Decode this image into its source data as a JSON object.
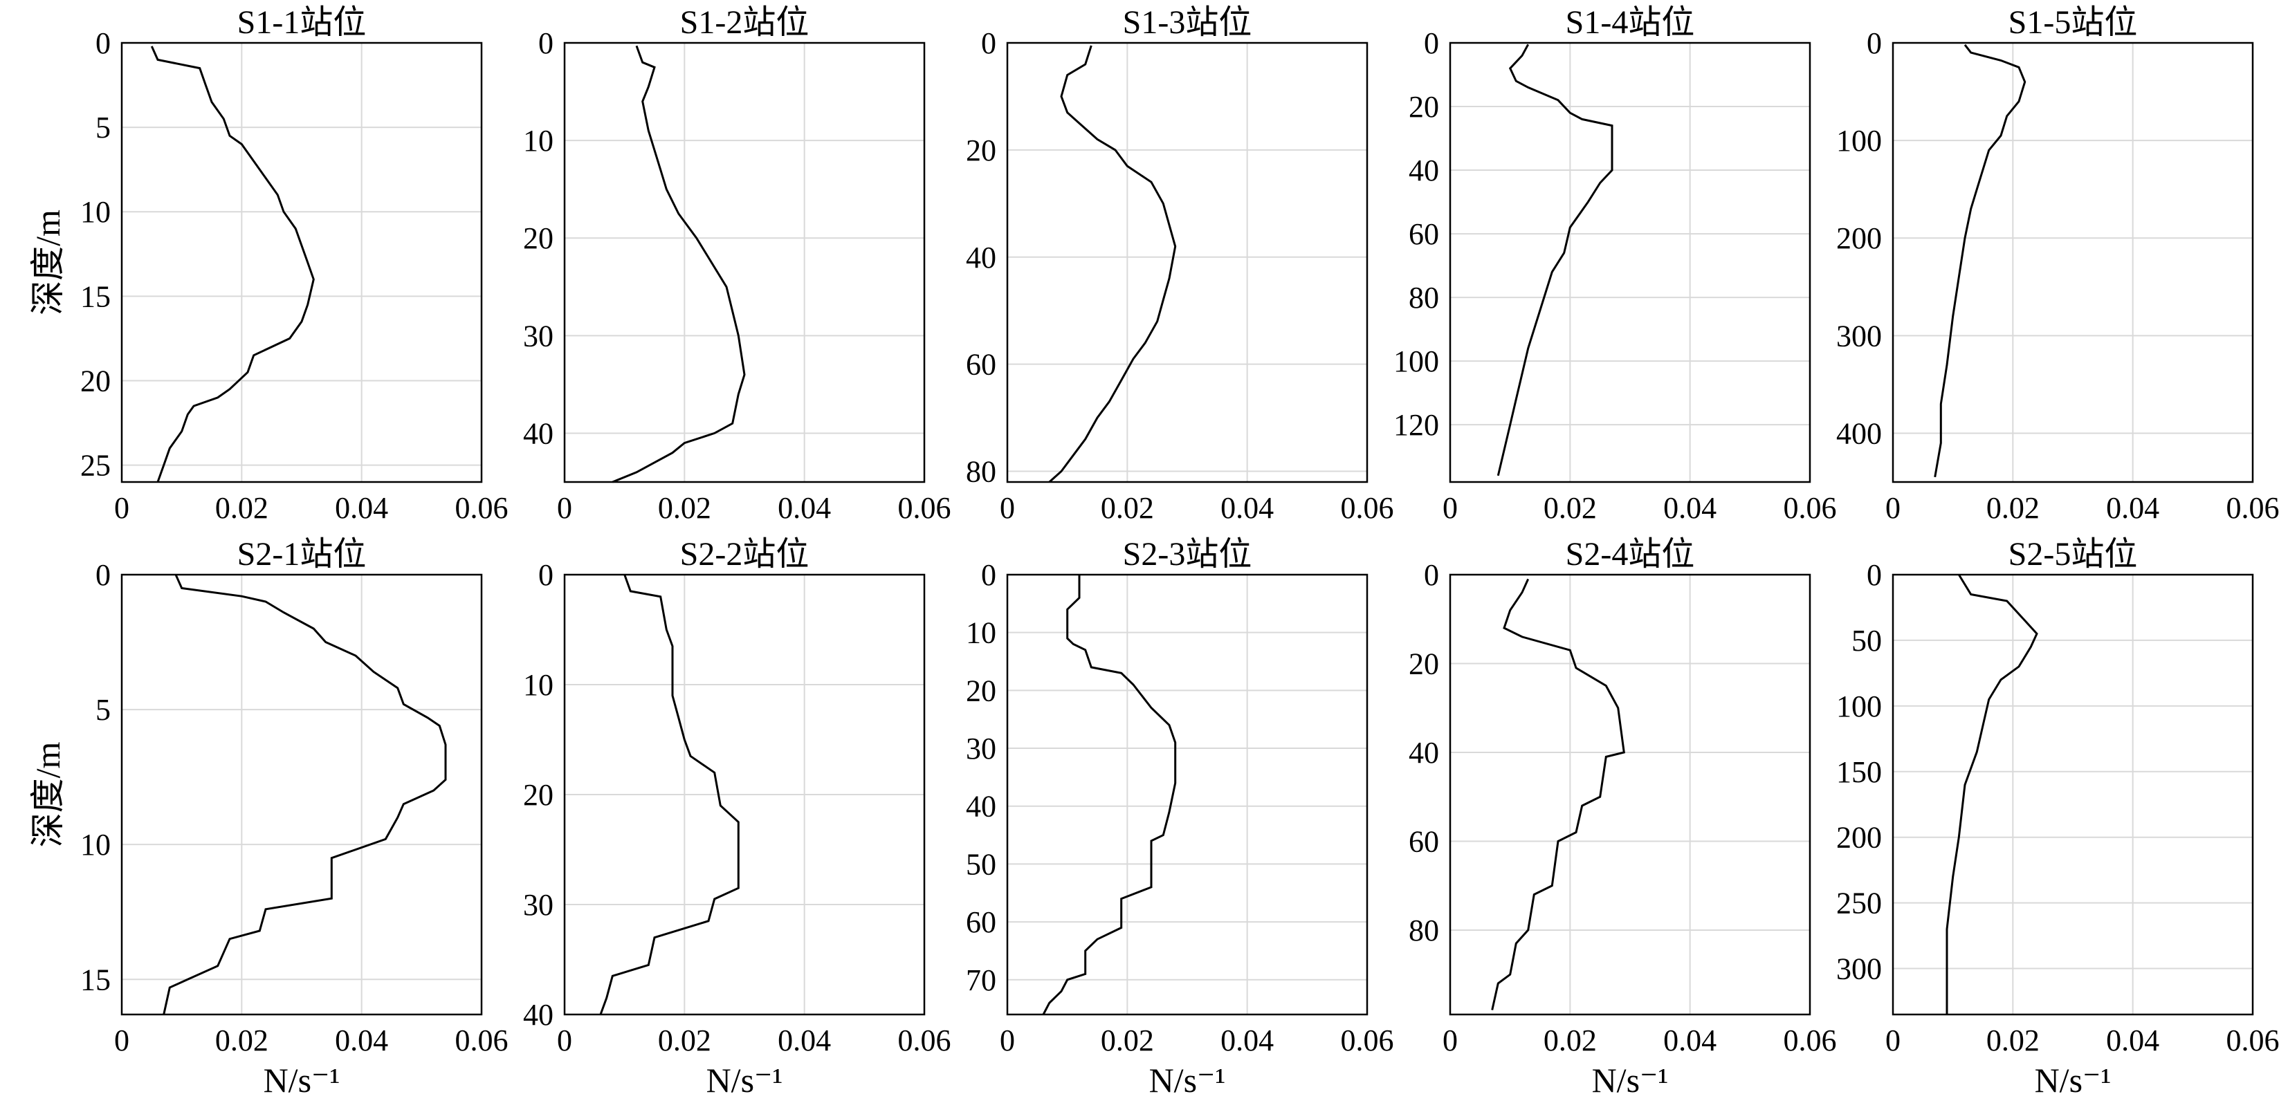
{
  "chart_data": [
    {
      "type": "line",
      "title": "S1-1站位",
      "ylabel": "深度/m",
      "xlabel": "",
      "xlim": [
        0,
        0.06
      ],
      "ylim": [
        0,
        26
      ],
      "xticks": [
        "0",
        "0.02",
        "0.04",
        "0.06"
      ],
      "yticks": [
        0,
        5,
        10,
        15,
        20,
        25
      ],
      "grid": true,
      "series": [
        {
          "x": [
            0.005,
            0.006,
            0.013,
            0.014,
            0.015,
            0.017,
            0.018,
            0.02,
            0.022,
            0.024,
            0.026,
            0.027,
            0.029,
            0.03,
            0.031,
            0.032,
            0.031,
            0.03,
            0.028,
            0.022,
            0.021,
            0.018,
            0.016,
            0.012,
            0.011,
            0.01,
            0.008,
            0.007,
            0.006
          ],
          "y": [
            0.2,
            1.0,
            1.5,
            2.5,
            3.5,
            4.5,
            5.5,
            6.0,
            7.0,
            8.0,
            9.0,
            10.0,
            11.0,
            12.0,
            13.0,
            14.0,
            15.5,
            16.5,
            17.5,
            18.5,
            19.5,
            20.5,
            21.0,
            21.5,
            22.0,
            23.0,
            24.0,
            25.0,
            26.0
          ]
        }
      ]
    },
    {
      "type": "line",
      "title": "S1-2站位",
      "ylabel": "",
      "xlabel": "",
      "xlim": [
        0,
        0.06
      ],
      "ylim": [
        0,
        45
      ],
      "xticks": [
        "0",
        "0.02",
        "0.04",
        "0.06"
      ],
      "yticks": [
        0,
        10,
        20,
        30,
        40
      ],
      "grid": true,
      "series": [
        {
          "x": [
            0.012,
            0.013,
            0.015,
            0.014,
            0.013,
            0.014,
            0.015,
            0.016,
            0.017,
            0.019,
            0.022,
            0.024,
            0.027,
            0.028,
            0.029,
            0.03,
            0.029,
            0.028,
            0.025,
            0.02,
            0.018,
            0.015,
            0.012,
            0.008
          ],
          "y": [
            0.3,
            2.0,
            2.5,
            4.5,
            6.0,
            9.0,
            11.0,
            13.0,
            15.0,
            17.5,
            20.0,
            22.0,
            25.0,
            27.5,
            30.0,
            34.0,
            36.0,
            39.0,
            40.0,
            41.0,
            42.0,
            43.0,
            44.0,
            45.0
          ]
        }
      ]
    },
    {
      "type": "line",
      "title": "S1-3站位",
      "ylabel": "",
      "xlabel": "",
      "xlim": [
        0,
        0.06
      ],
      "ylim": [
        0,
        82
      ],
      "xticks": [
        "0",
        "0.02",
        "0.04",
        "0.06"
      ],
      "yticks": [
        0,
        20,
        40,
        60,
        80
      ],
      "grid": true,
      "series": [
        {
          "x": [
            0.014,
            0.013,
            0.01,
            0.009,
            0.01,
            0.012,
            0.015,
            0.018,
            0.02,
            0.024,
            0.026,
            0.027,
            0.028,
            0.027,
            0.026,
            0.025,
            0.023,
            0.021,
            0.019,
            0.017,
            0.015,
            0.013,
            0.011,
            0.009,
            0.007
          ],
          "y": [
            0.5,
            4.0,
            6.0,
            10.0,
            13.0,
            15.0,
            18.0,
            20.0,
            23.0,
            26.0,
            30.0,
            34.0,
            38.0,
            44.0,
            48.0,
            52.0,
            56.0,
            59.0,
            63.0,
            67.0,
            70.0,
            74.0,
            77.0,
            80.0,
            82.0
          ]
        }
      ]
    },
    {
      "type": "line",
      "title": "S1-4站位",
      "ylabel": "",
      "xlabel": "",
      "xlim": [
        0,
        0.06
      ],
      "ylim": [
        0,
        138
      ],
      "xticks": [
        "0",
        "0.02",
        "0.04",
        "0.06"
      ],
      "yticks": [
        0,
        20,
        40,
        60,
        80,
        100,
        120
      ],
      "grid": true,
      "series": [
        {
          "x": [
            0.013,
            0.012,
            0.01,
            0.011,
            0.013,
            0.018,
            0.02,
            0.022,
            0.027,
            0.027,
            0.025,
            0.023,
            0.02,
            0.019,
            0.017,
            0.015,
            0.013,
            0.012,
            0.011,
            0.01,
            0.009,
            0.008
          ],
          "y": [
            0.5,
            4.0,
            8.0,
            12.0,
            14.0,
            18.0,
            22.0,
            24.0,
            26.0,
            40.0,
            44.0,
            50.0,
            58.0,
            66.0,
            72.0,
            84.0,
            96.0,
            104.0,
            112.0,
            120.0,
            128.0,
            136.0
          ]
        }
      ]
    },
    {
      "type": "line",
      "title": "S1-5站位",
      "ylabel": "",
      "xlabel": "",
      "xlim": [
        0,
        0.06
      ],
      "ylim": [
        0,
        450
      ],
      "xticks": [
        "0",
        "0.02",
        "0.04",
        "0.06"
      ],
      "yticks": [
        0,
        100,
        200,
        300,
        400
      ],
      "grid": true,
      "series": [
        {
          "x": [
            0.012,
            0.013,
            0.018,
            0.021,
            0.022,
            0.021,
            0.019,
            0.018,
            0.016,
            0.015,
            0.014,
            0.013,
            0.012,
            0.011,
            0.01,
            0.009,
            0.008,
            0.008,
            0.007
          ],
          "y": [
            2,
            10,
            18,
            25,
            40,
            60,
            75,
            95,
            110,
            130,
            150,
            170,
            200,
            240,
            280,
            330,
            370,
            410,
            445
          ]
        }
      ]
    },
    {
      "type": "line",
      "title": "S2-1站位",
      "ylabel": "深度/m",
      "xlabel": "N/s⁻¹",
      "xlim": [
        0,
        0.06
      ],
      "ylim": [
        0,
        16.3
      ],
      "xticks": [
        "0",
        "0.02",
        "0.04",
        "0.06"
      ],
      "yticks": [
        0,
        5,
        10,
        15
      ],
      "grid": true,
      "series": [
        {
          "x": [
            0.009,
            0.01,
            0.02,
            0.024,
            0.027,
            0.032,
            0.034,
            0.039,
            0.042,
            0.046,
            0.047,
            0.051,
            0.053,
            0.054,
            0.054,
            0.052,
            0.047,
            0.046,
            0.044,
            0.035,
            0.035,
            0.024,
            0.023,
            0.018,
            0.016,
            0.011,
            0.008,
            0.007
          ],
          "y": [
            0.0,
            0.5,
            0.8,
            1.0,
            1.4,
            2.0,
            2.5,
            3.0,
            3.6,
            4.2,
            4.8,
            5.3,
            5.6,
            6.3,
            7.6,
            8.0,
            8.5,
            9.0,
            9.8,
            10.5,
            12.0,
            12.4,
            13.2,
            13.5,
            14.5,
            15.0,
            15.3,
            16.3
          ]
        }
      ]
    },
    {
      "type": "line",
      "title": "S2-2站位",
      "ylabel": "",
      "xlabel": "N/s⁻¹",
      "xlim": [
        0,
        0.06
      ],
      "ylim": [
        0,
        40
      ],
      "xticks": [
        "0",
        "0.02",
        "0.04",
        "0.06"
      ],
      "yticks": [
        0,
        10,
        20,
        30,
        40
      ],
      "grid": true,
      "series": [
        {
          "x": [
            0.01,
            0.011,
            0.016,
            0.017,
            0.018,
            0.018,
            0.019,
            0.02,
            0.021,
            0.025,
            0.026,
            0.028,
            0.029,
            0.029,
            0.025,
            0.024,
            0.015,
            0.014,
            0.008,
            0.007,
            0.006
          ],
          "y": [
            0.0,
            1.5,
            2.0,
            5.0,
            6.5,
            11.0,
            13.0,
            15.0,
            16.5,
            18.0,
            21.0,
            22.0,
            22.5,
            28.5,
            29.5,
            31.5,
            33.0,
            35.5,
            36.5,
            38.5,
            40.0
          ]
        }
      ]
    },
    {
      "type": "line",
      "title": "S2-3站位",
      "ylabel": "",
      "xlabel": "N/s⁻¹",
      "xlim": [
        0,
        0.06
      ],
      "ylim": [
        0,
        76
      ],
      "xticks": [
        "0",
        "0.02",
        "0.04",
        "0.06"
      ],
      "yticks": [
        0,
        10,
        20,
        30,
        40,
        50,
        60,
        70
      ],
      "grid": true,
      "series": [
        {
          "x": [
            0.012,
            0.012,
            0.01,
            0.01,
            0.011,
            0.013,
            0.014,
            0.019,
            0.021,
            0.024,
            0.027,
            0.028,
            0.028,
            0.027,
            0.026,
            0.024,
            0.024,
            0.019,
            0.019,
            0.015,
            0.013,
            0.013,
            0.01,
            0.009,
            0.007,
            0.006
          ],
          "y": [
            0.0,
            4.0,
            6.0,
            11.0,
            12.0,
            13.0,
            16.0,
            17.0,
            19.0,
            23.0,
            26.0,
            29.0,
            36.0,
            41.0,
            45.0,
            46.0,
            54.0,
            56.0,
            61.0,
            63.0,
            65.0,
            69.0,
            70.0,
            72.0,
            74.0,
            76.0
          ]
        }
      ]
    },
    {
      "type": "line",
      "title": "S2-4站位",
      "ylabel": "",
      "xlabel": "N/s⁻¹",
      "xlim": [
        0,
        0.06
      ],
      "ylim": [
        0,
        99
      ],
      "xticks": [
        "0",
        "0.02",
        "0.04",
        "0.06"
      ],
      "yticks": [
        0,
        20,
        40,
        60,
        80
      ],
      "grid": true,
      "series": [
        {
          "x": [
            0.013,
            0.012,
            0.01,
            0.009,
            0.012,
            0.02,
            0.021,
            0.026,
            0.028,
            0.029,
            0.026,
            0.025,
            0.022,
            0.021,
            0.018,
            0.017,
            0.014,
            0.013,
            0.011,
            0.01,
            0.008,
            0.007
          ],
          "y": [
            1,
            4,
            8,
            12,
            14,
            17,
            21,
            25,
            30,
            40,
            41,
            50,
            52,
            58,
            60,
            70,
            72,
            80,
            83,
            90,
            92,
            98
          ]
        }
      ]
    },
    {
      "type": "line",
      "title": "S2-5站位",
      "ylabel": "",
      "xlabel": "N/s⁻¹",
      "xlim": [
        0,
        0.06
      ],
      "ylim": [
        0,
        335
      ],
      "xticks": [
        "0",
        "0.02",
        "0.04",
        "0.06"
      ],
      "yticks": [
        0,
        50,
        100,
        150,
        200,
        250,
        300
      ],
      "grid": true,
      "series": [
        {
          "x": [
            0.011,
            0.013,
            0.019,
            0.022,
            0.024,
            0.023,
            0.021,
            0.018,
            0.016,
            0.015,
            0.014,
            0.012,
            0.011,
            0.01,
            0.009,
            0.009,
            0.009
          ],
          "y": [
            0,
            15,
            20,
            35,
            45,
            55,
            70,
            80,
            95,
            115,
            135,
            160,
            200,
            230,
            270,
            300,
            335
          ]
        }
      ]
    }
  ]
}
